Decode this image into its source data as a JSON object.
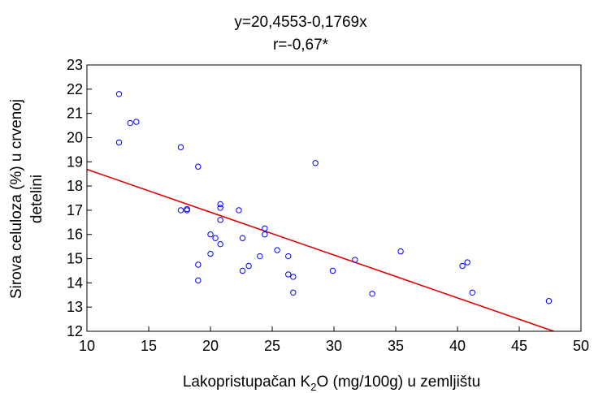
{
  "chart_data": {
    "type": "scatter",
    "title": "y=20,4553-0,1769x",
    "subtitle": "r=-0,67*",
    "xlabel": {
      "pre": "Lakopristupačan K",
      "sub": "2",
      "post": "O (mg/100g) u zemljištu"
    },
    "ylabel": {
      "line1": "Sirova celuloza (%) u crvenoj",
      "line2": "detelini"
    },
    "xlim": [
      10,
      50
    ],
    "ylim": [
      12,
      23
    ],
    "xticks": [
      10,
      15,
      20,
      25,
      30,
      35,
      40,
      45,
      50
    ],
    "yticks": [
      12,
      13,
      14,
      15,
      16,
      17,
      18,
      19,
      20,
      21,
      22,
      23
    ],
    "grid": false,
    "marker_color": "#0000ff",
    "line_color": "#e00000",
    "regression": {
      "intercept": 20.4553,
      "slope": -0.1769
    },
    "points": [
      {
        "x": 12.6,
        "y": 21.8
      },
      {
        "x": 12.6,
        "y": 19.8
      },
      {
        "x": 13.5,
        "y": 20.6
      },
      {
        "x": 14.0,
        "y": 20.65
      },
      {
        "x": 17.6,
        "y": 19.6
      },
      {
        "x": 17.6,
        "y": 17.0
      },
      {
        "x": 18.1,
        "y": 17.05
      },
      {
        "x": 18.1,
        "y": 17.0
      },
      {
        "x": 19.0,
        "y": 18.8
      },
      {
        "x": 19.0,
        "y": 14.75
      },
      {
        "x": 19.0,
        "y": 14.1
      },
      {
        "x": 20.0,
        "y": 16.0
      },
      {
        "x": 20.0,
        "y": 15.2
      },
      {
        "x": 20.4,
        "y": 15.85
      },
      {
        "x": 20.8,
        "y": 17.25
      },
      {
        "x": 20.8,
        "y": 17.1
      },
      {
        "x": 20.8,
        "y": 16.6
      },
      {
        "x": 20.8,
        "y": 15.6
      },
      {
        "x": 22.3,
        "y": 17.0
      },
      {
        "x": 22.6,
        "y": 15.85
      },
      {
        "x": 22.6,
        "y": 14.5
      },
      {
        "x": 23.1,
        "y": 14.7
      },
      {
        "x": 24.0,
        "y": 15.1
      },
      {
        "x": 24.4,
        "y": 16.25
      },
      {
        "x": 24.4,
        "y": 16.0
      },
      {
        "x": 25.4,
        "y": 15.35
      },
      {
        "x": 26.3,
        "y": 15.1
      },
      {
        "x": 26.3,
        "y": 14.35
      },
      {
        "x": 26.7,
        "y": 14.25
      },
      {
        "x": 26.7,
        "y": 13.6
      },
      {
        "x": 28.5,
        "y": 18.95
      },
      {
        "x": 29.9,
        "y": 14.5
      },
      {
        "x": 31.7,
        "y": 14.95
      },
      {
        "x": 33.1,
        "y": 13.55
      },
      {
        "x": 35.4,
        "y": 15.3
      },
      {
        "x": 40.4,
        "y": 14.7
      },
      {
        "x": 40.8,
        "y": 14.85
      },
      {
        "x": 41.2,
        "y": 13.6
      },
      {
        "x": 47.4,
        "y": 13.25
      }
    ]
  }
}
